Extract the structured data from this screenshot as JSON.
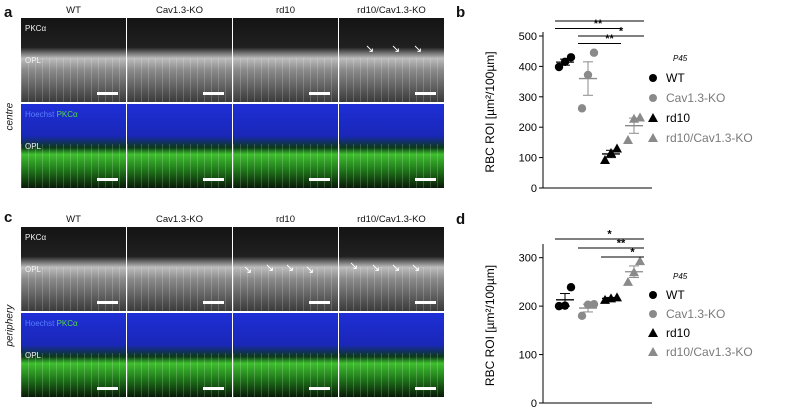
{
  "panel_letters": {
    "a": "a",
    "b": "b",
    "c": "c",
    "d": "d"
  },
  "column_titles": [
    "WT",
    "Cav1.3-KO",
    "rd10",
    "rd10/Cav1.3-KO"
  ],
  "side_labels": {
    "top": "centre",
    "bottom": "periphery"
  },
  "image_tags": {
    "pkc": "PKCα",
    "opl": "OPL",
    "hoechst": "Hoechst",
    "pkc_green": "PKCα"
  },
  "colors": {
    "wt": "#000000",
    "cav": "#8a8a8a",
    "rd10": "#000000",
    "rd10cav": "#8a8a8a",
    "hoechst_blue": "#1e2fd6",
    "pkc_green": "#3fbf2f"
  },
  "chart_data": [
    {
      "type": "scatter",
      "panel": "b",
      "ylabel": "RBC ROI [µm²/100µm]",
      "ylim": [
        0,
        500
      ],
      "yticks": [
        0,
        100,
        200,
        300,
        400,
        500
      ],
      "legend_title": "P45",
      "series": [
        {
          "name": "WT",
          "marker": "circle",
          "points": [
            398,
            415,
            430
          ],
          "mean": 414,
          "sem": 10
        },
        {
          "name": "Cav1.3-KO",
          "marker": "circle",
          "points": [
            262,
            372,
            445
          ],
          "mean": 360,
          "sem": 55
        },
        {
          "name": "rd10",
          "marker": "triangle",
          "points": [
            92,
            115,
            130
          ],
          "mean": 112,
          "sem": 12
        },
        {
          "name": "rd10/Cav1.3-KO",
          "marker": "triangle",
          "points": [
            158,
            228,
            232
          ],
          "mean": 205,
          "sem": 25
        }
      ],
      "significance": [
        {
          "from": 0,
          "to": 3,
          "label": "**"
        },
        {
          "from": 0,
          "to": 2,
          "label": "**"
        },
        {
          "from": 1,
          "to": 3,
          "label": "*"
        },
        {
          "from": 1,
          "to": 2,
          "label": "**"
        }
      ]
    },
    {
      "type": "scatter",
      "panel": "d",
      "ylabel": "RBC ROI [µm²/100µm]",
      "ylim": [
        0,
        320
      ],
      "yticks": [
        0,
        100,
        200,
        300
      ],
      "legend_title": "P45",
      "series": [
        {
          "name": "WT",
          "marker": "circle",
          "points": [
            200,
            201,
            239
          ],
          "mean": 213,
          "sem": 13
        },
        {
          "name": "Cav1.3-KO",
          "marker": "circle",
          "points": [
            180,
            203,
            204
          ],
          "mean": 196,
          "sem": 8
        },
        {
          "name": "rd10",
          "marker": "triangle",
          "points": [
            213,
            216,
            218
          ],
          "mean": 216,
          "sem": 2
        },
        {
          "name": "rd10/Cav1.3-KO",
          "marker": "triangle",
          "points": [
            250,
            270,
            293
          ],
          "mean": 271,
          "sem": 12
        }
      ],
      "significance": [
        {
          "from": 0,
          "to": 3,
          "label": "*"
        },
        {
          "from": 1,
          "to": 3,
          "label": "**"
        },
        {
          "from": 2,
          "to": 3,
          "label": "*"
        }
      ]
    }
  ]
}
